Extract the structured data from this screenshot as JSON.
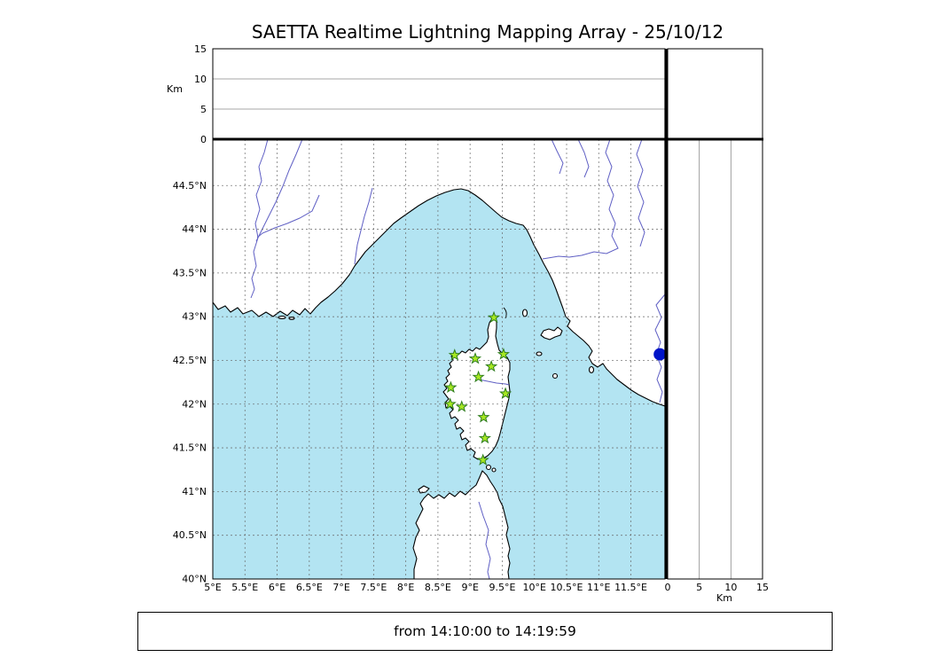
{
  "title": "SAETTA Realtime Lightning Mapping Array - 25/10/12",
  "footer": {
    "time_range": "from 14:10:00 to 14:19:59"
  },
  "alt_axis": {
    "label": "Km",
    "range": [
      0,
      15
    ],
    "ticks": [
      {
        "value": 0,
        "label": "0"
      },
      {
        "value": 5,
        "label": "5"
      },
      {
        "value": 10,
        "label": "10"
      },
      {
        "value": 15,
        "label": "15"
      }
    ]
  },
  "map": {
    "lon_range": [
      5,
      12.03
    ],
    "lat_range": [
      40,
      45.03
    ],
    "lon_ticks": [
      {
        "value": 5,
        "label": "5°E"
      },
      {
        "value": 5.5,
        "label": "5.5°E"
      },
      {
        "value": 6,
        "label": "6°E"
      },
      {
        "value": 6.5,
        "label": "6.5°E"
      },
      {
        "value": 7,
        "label": "7°E"
      },
      {
        "value": 7.5,
        "label": "7.5°E"
      },
      {
        "value": 8,
        "label": "8°E"
      },
      {
        "value": 8.5,
        "label": "8.5°E"
      },
      {
        "value": 9,
        "label": "9°E"
      },
      {
        "value": 9.5,
        "label": "9.5°E"
      },
      {
        "value": 10,
        "label": "10°E"
      },
      {
        "value": 10.5,
        "label": "10.5°E"
      },
      {
        "value": 11,
        "label": "11°E"
      },
      {
        "value": 11.5,
        "label": "11.5°E"
      }
    ],
    "lat_ticks": [
      {
        "value": 40,
        "label": "40°N"
      },
      {
        "value": 40.5,
        "label": "40.5°N"
      },
      {
        "value": 41,
        "label": "41°N"
      },
      {
        "value": 41.5,
        "label": "41.5°N"
      },
      {
        "value": 42,
        "label": "42°N"
      },
      {
        "value": 42.5,
        "label": "42.5°N"
      },
      {
        "value": 43,
        "label": "43°N"
      },
      {
        "value": 43.5,
        "label": "43.5°N"
      },
      {
        "value": 44,
        "label": "44°N"
      },
      {
        "value": 44.5,
        "label": "44.5°N"
      }
    ],
    "colors": {
      "sea": "#b3e4f2",
      "land": "#ffffff",
      "coast": "#000000",
      "river": "#5f5fc4",
      "grid": "#666666"
    }
  },
  "stations": {
    "style": {
      "fill": "#a7e821",
      "stroke": "#2e7d1e"
    },
    "points": [
      {
        "lon": 9.37,
        "lat": 42.99
      },
      {
        "lon": 8.76,
        "lat": 42.56
      },
      {
        "lon": 9.08,
        "lat": 42.52
      },
      {
        "lon": 9.52,
        "lat": 42.57
      },
      {
        "lon": 9.33,
        "lat": 42.43
      },
      {
        "lon": 9.13,
        "lat": 42.31
      },
      {
        "lon": 8.7,
        "lat": 42.19
      },
      {
        "lon": 9.55,
        "lat": 42.12
      },
      {
        "lon": 8.69,
        "lat": 42.0
      },
      {
        "lon": 8.87,
        "lat": 41.97
      },
      {
        "lon": 9.21,
        "lat": 41.85
      },
      {
        "lon": 9.23,
        "lat": 41.61
      },
      {
        "lon": 9.2,
        "lat": 41.36
      }
    ]
  },
  "marker": {
    "lon": 11.95,
    "lat": 42.57,
    "color": "#0014c8"
  }
}
